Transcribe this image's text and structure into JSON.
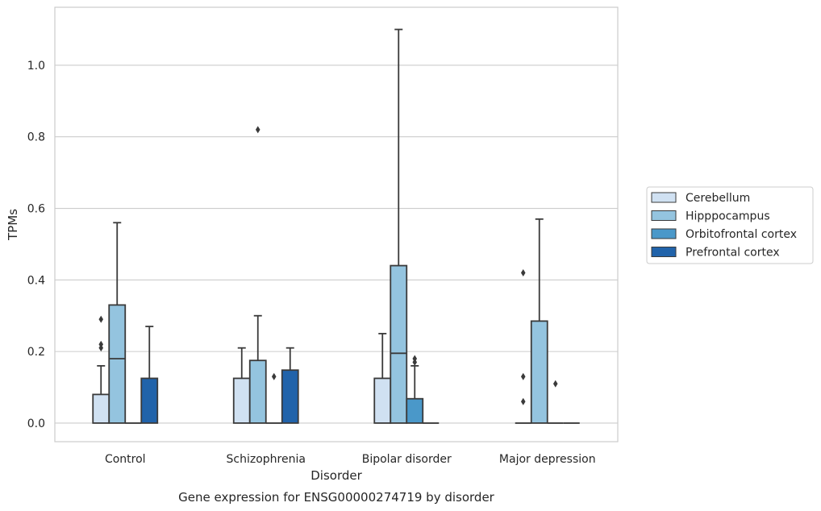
{
  "chart_data": {
    "type": "box",
    "caption": "Gene expression for ENSG00000274719 by disorder",
    "xlabel": "Disorder",
    "ylabel": "TPMs",
    "ylim": [
      -0.052,
      1.162
    ],
    "yticks": [
      "0.0",
      "0.2",
      "0.4",
      "0.6",
      "0.8",
      "1.0"
    ],
    "ytick_values": [
      0.0,
      0.2,
      0.4,
      0.6,
      0.8,
      1.0
    ],
    "grid": "horizontal",
    "legend_position": "right",
    "categories": [
      "Control",
      "Schizophrenia",
      "Bipolar disorder",
      "Major depression"
    ],
    "series": [
      {
        "name": "Cerebellum",
        "color": "#d0e1f2",
        "boxes": [
          {
            "whislo": 0.0,
            "q1": 0.0,
            "med": 0.0,
            "q3": 0.08,
            "whishi": 0.16,
            "fliers": [
              0.21,
              0.22,
              0.29
            ]
          },
          {
            "whislo": 0.0,
            "q1": 0.0,
            "med": 0.0,
            "q3": 0.125,
            "whishi": 0.21,
            "fliers": []
          },
          {
            "whislo": 0.0,
            "q1": 0.0,
            "med": 0.0,
            "q3": 0.125,
            "whishi": 0.25,
            "fliers": []
          },
          {
            "whislo": 0.0,
            "q1": 0.0,
            "med": 0.0,
            "q3": 0.0,
            "whishi": 0.0,
            "fliers": [
              0.06,
              0.13,
              0.42
            ]
          }
        ]
      },
      {
        "name": "Hipppocampus",
        "color": "#94c4df",
        "boxes": [
          {
            "whislo": 0.0,
            "q1": 0.0,
            "med": 0.18,
            "q3": 0.33,
            "whishi": 0.56,
            "fliers": []
          },
          {
            "whislo": 0.0,
            "q1": 0.0,
            "med": 0.0,
            "q3": 0.175,
            "whishi": 0.3,
            "fliers": [
              0.82
            ]
          },
          {
            "whislo": 0.0,
            "q1": 0.0,
            "med": 0.195,
            "q3": 0.44,
            "whishi": 1.1,
            "fliers": []
          },
          {
            "whislo": 0.0,
            "q1": 0.0,
            "med": 0.0,
            "q3": 0.285,
            "whishi": 0.57,
            "fliers": []
          }
        ]
      },
      {
        "name": "Orbitofrontal cortex",
        "color": "#4a98c9",
        "boxes": [
          {
            "whislo": 0.0,
            "q1": 0.0,
            "med": 0.0,
            "q3": 0.0,
            "whishi": 0.0,
            "fliers": []
          },
          {
            "whislo": 0.0,
            "q1": 0.0,
            "med": 0.0,
            "q3": 0.0,
            "whishi": 0.0,
            "fliers": [
              0.13
            ]
          },
          {
            "whislo": 0.0,
            "q1": 0.0,
            "med": 0.0,
            "q3": 0.068,
            "whishi": 0.16,
            "fliers": [
              0.17,
              0.18
            ]
          },
          {
            "whislo": 0.0,
            "q1": 0.0,
            "med": 0.0,
            "q3": 0.0,
            "whishi": 0.0,
            "fliers": [
              0.11
            ]
          }
        ]
      },
      {
        "name": "Prefrontal cortex",
        "color": "#2163aa",
        "boxes": [
          {
            "whislo": 0.0,
            "q1": 0.0,
            "med": 0.0,
            "q3": 0.125,
            "whishi": 0.27,
            "fliers": []
          },
          {
            "whislo": 0.0,
            "q1": 0.0,
            "med": 0.0,
            "q3": 0.148,
            "whishi": 0.21,
            "fliers": []
          },
          {
            "whislo": 0.0,
            "q1": 0.0,
            "med": 0.0,
            "q3": 0.0,
            "whishi": 0.0,
            "fliers": []
          },
          {
            "whislo": 0.0,
            "q1": 0.0,
            "med": 0.0,
            "q3": 0.0,
            "whishi": 0.0,
            "fliers": []
          }
        ]
      }
    ]
  }
}
